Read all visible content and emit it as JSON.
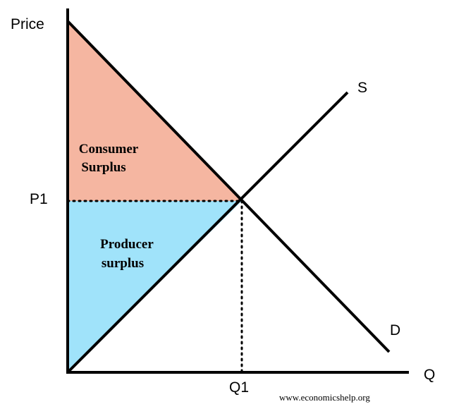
{
  "diagram": {
    "axes": {
      "y_label": "Price",
      "x_label": "Q"
    },
    "equilibrium": {
      "price_label": "P1",
      "quantity_label": "Q1"
    },
    "curves": {
      "supply_label": "S",
      "demand_label": "D"
    },
    "areas": {
      "consumer_surplus": {
        "line1": "Consumer",
        "line2": "Surplus",
        "color": "#f5b6a1"
      },
      "producer_surplus": {
        "line1": "Producer",
        "line2": "surplus",
        "color": "#a0e3fa"
      }
    },
    "credit": "www.economicshelp.org"
  }
}
